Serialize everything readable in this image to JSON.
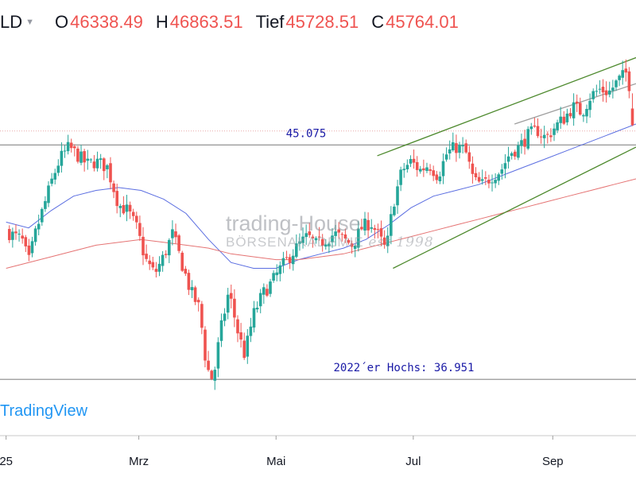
{
  "header": {
    "symbol": "LD",
    "open_label": "O",
    "open_value": "46338.49",
    "high_label": "H",
    "high_value": "46863.51",
    "low_label": "Tief",
    "low_value": "45728.51",
    "close_label": "C",
    "close_value": "45764.01"
  },
  "watermark": {
    "line1": "trading-House",
    "line2": "BÖRSENAKADEMIE",
    "line2_suffix": "est 1998"
  },
  "logo": "TradingView",
  "colors": {
    "up": "#26a69a",
    "down": "#ef5350",
    "annotation_text": "#1a1aa6",
    "channel": "#4e8a2e",
    "sma_short": "#5b6ee1",
    "sma_long": "#e57373",
    "level_line": "#888888"
  },
  "chart_data": {
    "type": "candlestick",
    "x_axis_labels": [
      "25",
      "Mrz",
      "Mai",
      "Jul",
      "Sep"
    ],
    "x_axis_label_days": [
      0,
      59,
      120,
      181,
      243
    ],
    "ylim": [
      35000,
      48500
    ],
    "grid": false,
    "annotations": [
      {
        "text": "45.075",
        "value": 45075
      },
      {
        "text": "2022´er Hochs: 36.951",
        "value": 36951
      }
    ],
    "horizontal_levels": [
      45075,
      36951
    ],
    "last_candle": {
      "open": 46338.49,
      "high": 46863.51,
      "low": 45728.51,
      "close": 45764.01
    },
    "trend_channel": {
      "upper": [
        {
          "day": 165,
          "value": 44700
        },
        {
          "day": 280,
          "value": 48100
        }
      ],
      "lower": [
        {
          "day": 172,
          "value": 40800
        },
        {
          "day": 280,
          "value": 45000
        }
      ],
      "inner": [
        {
          "day": 226,
          "value": 45800
        },
        {
          "day": 280,
          "value": 47200
        }
      ]
    },
    "moving_averages": [
      {
        "points": [
          [
            0,
            42400
          ],
          [
            10,
            42200
          ],
          [
            20,
            42800
          ],
          [
            30,
            43300
          ],
          [
            40,
            43500
          ],
          [
            50,
            43600
          ],
          [
            60,
            43500
          ],
          [
            70,
            43200
          ],
          [
            80,
            42700
          ],
          [
            90,
            41800
          ],
          [
            100,
            41000
          ],
          [
            110,
            40800
          ],
          [
            120,
            40800
          ],
          [
            130,
            41100
          ],
          [
            140,
            41300
          ],
          [
            150,
            41500
          ],
          [
            160,
            41800
          ],
          [
            170,
            42300
          ],
          [
            180,
            42900
          ],
          [
            190,
            43300
          ],
          [
            200,
            43500
          ],
          [
            210,
            43700
          ],
          [
            220,
            44000
          ],
          [
            230,
            44300
          ],
          [
            240,
            44600
          ],
          [
            250,
            44900
          ],
          [
            260,
            45200
          ],
          [
            270,
            45500
          ],
          [
            280,
            45800
          ]
        ]
      },
      {
        "points": [
          [
            0,
            40800
          ],
          [
            20,
            41200
          ],
          [
            40,
            41600
          ],
          [
            60,
            41800
          ],
          [
            70,
            41700
          ],
          [
            80,
            41600
          ],
          [
            90,
            41500
          ],
          [
            100,
            41300
          ],
          [
            110,
            41200
          ],
          [
            120,
            41100
          ],
          [
            130,
            41100
          ],
          [
            140,
            41200
          ],
          [
            150,
            41300
          ],
          [
            160,
            41500
          ],
          [
            170,
            41700
          ],
          [
            180,
            41900
          ],
          [
            190,
            42100
          ],
          [
            200,
            42300
          ],
          [
            210,
            42500
          ],
          [
            220,
            42700
          ],
          [
            230,
            42900
          ],
          [
            240,
            43100
          ],
          [
            250,
            43300
          ],
          [
            260,
            43500
          ],
          [
            270,
            43700
          ],
          [
            280,
            43900
          ]
        ]
      }
    ],
    "close_path": [
      [
        0,
        42100
      ],
      [
        4,
        41900
      ],
      [
        7,
        41800
      ],
      [
        10,
        41000
      ],
      [
        13,
        42000
      ],
      [
        17,
        43000
      ],
      [
        21,
        44000
      ],
      [
        24,
        44600
      ],
      [
        28,
        45000
      ],
      [
        32,
        44700
      ],
      [
        36,
        44400
      ],
      [
        40,
        44500
      ],
      [
        45,
        44300
      ],
      [
        50,
        43000
      ],
      [
        54,
        42800
      ],
      [
        58,
        42200
      ],
      [
        62,
        41100
      ],
      [
        66,
        40600
      ],
      [
        70,
        41200
      ],
      [
        74,
        42000
      ],
      [
        78,
        41000
      ],
      [
        82,
        40000
      ],
      [
        86,
        39400
      ],
      [
        89,
        37400
      ],
      [
        92,
        36900
      ],
      [
        95,
        38500
      ],
      [
        99,
        40000
      ],
      [
        103,
        38600
      ],
      [
        106,
        37800
      ],
      [
        110,
        39200
      ],
      [
        114,
        39900
      ],
      [
        118,
        40300
      ],
      [
        122,
        40800
      ],
      [
        126,
        41200
      ],
      [
        130,
        41600
      ],
      [
        134,
        41900
      ],
      [
        138,
        41600
      ],
      [
        142,
        41800
      ],
      [
        146,
        42000
      ],
      [
        150,
        41800
      ],
      [
        154,
        41600
      ],
      [
        158,
        42200
      ],
      [
        162,
        42400
      ],
      [
        165,
        42000
      ],
      [
        169,
        41400
      ],
      [
        172,
        43000
      ],
      [
        176,
        44200
      ],
      [
        180,
        44500
      ],
      [
        184,
        44200
      ],
      [
        188,
        44400
      ],
      [
        192,
        44000
      ],
      [
        196,
        44800
      ],
      [
        200,
        45000
      ],
      [
        204,
        44900
      ],
      [
        208,
        43800
      ],
      [
        212,
        43700
      ],
      [
        216,
        44000
      ],
      [
        220,
        44200
      ],
      [
        224,
        44800
      ],
      [
        228,
        45000
      ],
      [
        232,
        45400
      ],
      [
        236,
        45600
      ],
      [
        240,
        45300
      ],
      [
        244,
        45700
      ],
      [
        248,
        46000
      ],
      [
        252,
        46400
      ],
      [
        256,
        46200
      ],
      [
        260,
        46800
      ],
      [
        264,
        47000
      ],
      [
        268,
        46900
      ],
      [
        272,
        47300
      ],
      [
        276,
        47600
      ],
      [
        280,
        45764
      ]
    ]
  }
}
